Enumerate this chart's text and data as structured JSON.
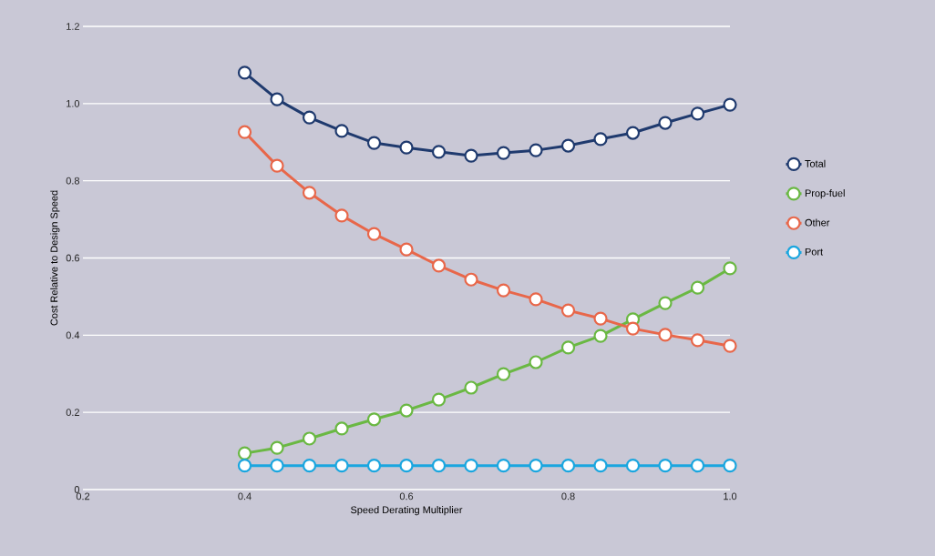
{
  "chart_data": {
    "type": "line",
    "xlabel": "Speed Derating Multiplier",
    "ylabel": "Cost Relative to Design Speed",
    "x": [
      0.4,
      0.44,
      0.48,
      0.52,
      0.56,
      0.6,
      0.64,
      0.68,
      0.72,
      0.76,
      0.8,
      0.84,
      0.88,
      0.92,
      0.96,
      1.0
    ],
    "series": [
      {
        "name": "Total",
        "color": "#1f3a6e",
        "values": [
          1.08,
          1.011,
          0.964,
          0.929,
          0.898,
          0.886,
          0.875,
          0.865,
          0.872,
          0.879,
          0.891,
          0.908,
          0.924,
          0.95,
          0.974,
          0.997
        ]
      },
      {
        "name": "Prop-fuel",
        "color": "#6ab843",
        "values": [
          0.094,
          0.108,
          0.132,
          0.158,
          0.182,
          0.205,
          0.233,
          0.264,
          0.299,
          0.33,
          0.368,
          0.398,
          0.441,
          0.483,
          0.523,
          0.573
        ]
      },
      {
        "name": "Other",
        "color": "#e8674a",
        "values": [
          0.926,
          0.839,
          0.769,
          0.71,
          0.662,
          0.622,
          0.58,
          0.544,
          0.516,
          0.493,
          0.464,
          0.443,
          0.417,
          0.401,
          0.387,
          0.372
        ]
      },
      {
        "name": "Port",
        "color": "#1aa6df",
        "values": [
          0.062,
          0.062,
          0.062,
          0.062,
          0.062,
          0.062,
          0.062,
          0.062,
          0.062,
          0.062,
          0.062,
          0.062,
          0.062,
          0.062,
          0.062,
          0.062
        ]
      }
    ],
    "xlim": [
      0.2,
      1.0
    ],
    "ylim": [
      0,
      1.2
    ],
    "xticks": [
      0.2,
      0.4,
      0.6,
      0.8,
      {
        "value": 1,
        "label": "1.0"
      }
    ],
    "yticks": [
      {
        "value": 0,
        "label": "0"
      },
      0.2,
      0.4,
      0.6,
      0.8,
      {
        "value": 1,
        "label": "1.0"
      },
      1.2
    ],
    "grid": "y",
    "legend": "right",
    "marker": "circle",
    "line_style": "solid"
  }
}
